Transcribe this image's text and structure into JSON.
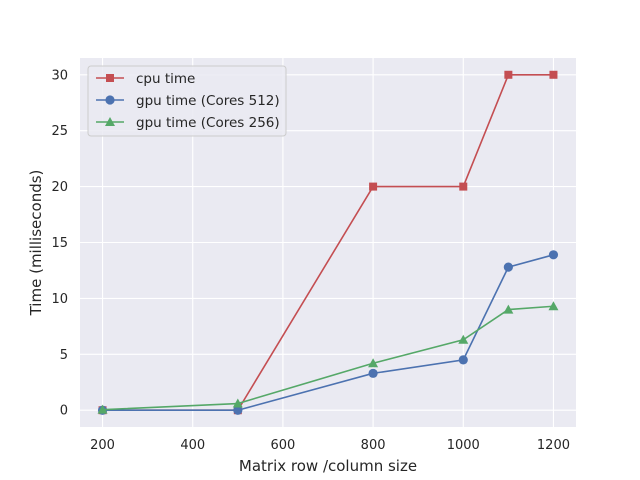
{
  "chart_data": {
    "type": "line",
    "xlabel": "Matrix row /column size",
    "ylabel": "Time (milliseconds)",
    "xlim": [
      150,
      1250
    ],
    "ylim": [
      -1.5,
      31.5
    ],
    "xticks": [
      200,
      400,
      600,
      800,
      1000,
      1200
    ],
    "yticks": [
      0,
      5,
      10,
      15,
      20,
      25,
      30
    ],
    "grid": true,
    "legend_position": "top-left",
    "series": [
      {
        "name": "cpu time",
        "color": "#c44e52",
        "marker": "square",
        "x": [
          200,
          500,
          800,
          1000,
          1100,
          1200
        ],
        "y": [
          0,
          0,
          20,
          20,
          30,
          30
        ]
      },
      {
        "name": "gpu time (Cores 512)",
        "color": "#4c72b0",
        "marker": "circle",
        "x": [
          200,
          500,
          800,
          1000,
          1100,
          1200
        ],
        "y": [
          0,
          0,
          3.3,
          4.5,
          12.8,
          13.9
        ]
      },
      {
        "name": "gpu time (Cores 256)",
        "color": "#55a868",
        "marker": "triangle",
        "x": [
          200,
          500,
          800,
          1000,
          1100,
          1200
        ],
        "y": [
          0.05,
          0.6,
          4.2,
          6.3,
          9.0,
          9.3
        ]
      }
    ]
  }
}
